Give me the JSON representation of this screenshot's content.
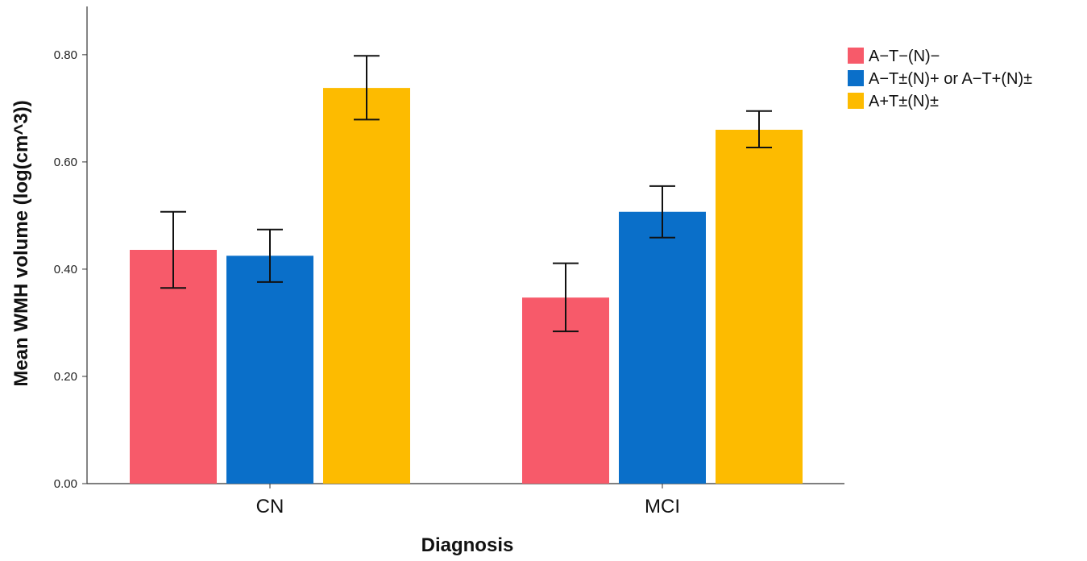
{
  "chart_data": {
    "type": "bar",
    "xlabel": "Diagnosis",
    "ylabel": "Mean WMH volume (log(cm^3))",
    "categories": [
      "CN",
      "MCI"
    ],
    "ylim": [
      0,
      0.89
    ],
    "yticks": [
      0.0,
      0.2,
      0.4,
      0.6,
      0.8
    ],
    "ytick_labels": [
      "0.00",
      "0.20",
      "0.40",
      "0.60",
      "0.80"
    ],
    "grid": false,
    "legend_position": "top-right",
    "series": [
      {
        "name": "A−T−(N)−",
        "color": "#f75a6a",
        "values": [
          0.436,
          0.347
        ],
        "err_low": [
          0.365,
          0.284
        ],
        "err_high": [
          0.507,
          0.411
        ]
      },
      {
        "name": "A−T±(N)+ or A−T+(N)±",
        "color": "#0a6fc9",
        "values": [
          0.425,
          0.507
        ],
        "err_low": [
          0.376,
          0.459
        ],
        "err_high": [
          0.474,
          0.555
        ]
      },
      {
        "name": "A+T±(N)±",
        "color": "#fdbb00",
        "values": [
          0.738,
          0.66
        ],
        "err_low": [
          0.679,
          0.627
        ],
        "err_high": [
          0.798,
          0.695
        ]
      }
    ]
  }
}
